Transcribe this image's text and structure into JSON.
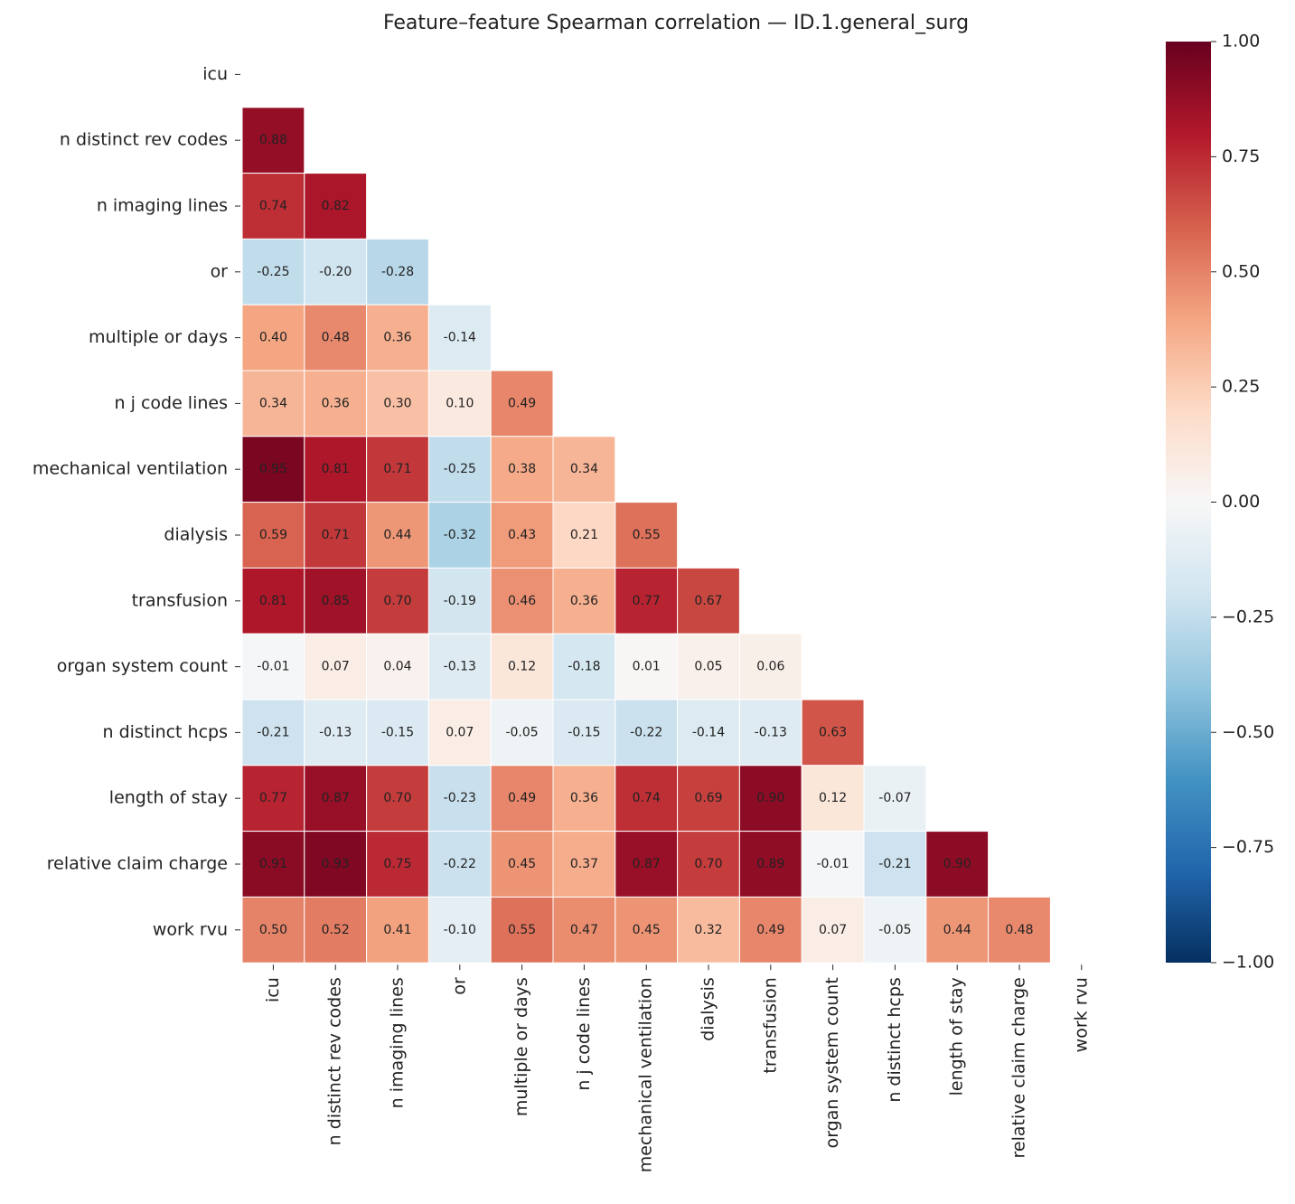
{
  "chart_data": {
    "type": "heatmap",
    "title": "Feature–feature Spearman correlation — ID.1.general_surg",
    "categories": [
      "icu",
      "n distinct rev codes",
      "n imaging lines",
      "or",
      "multiple or days",
      "n j code lines",
      "mechanical ventilation",
      "dialysis",
      "transfusion",
      "organ system count",
      "n distinct hcps",
      "length of stay",
      "relative claim charge",
      "work rvu"
    ],
    "values": [
      [
        null,
        null,
        null,
        null,
        null,
        null,
        null,
        null,
        null,
        null,
        null,
        null,
        null,
        null
      ],
      [
        0.88,
        null,
        null,
        null,
        null,
        null,
        null,
        null,
        null,
        null,
        null,
        null,
        null,
        null
      ],
      [
        0.74,
        0.82,
        null,
        null,
        null,
        null,
        null,
        null,
        null,
        null,
        null,
        null,
        null,
        null
      ],
      [
        -0.25,
        -0.2,
        -0.28,
        null,
        null,
        null,
        null,
        null,
        null,
        null,
        null,
        null,
        null,
        null
      ],
      [
        0.4,
        0.48,
        0.36,
        -0.14,
        null,
        null,
        null,
        null,
        null,
        null,
        null,
        null,
        null,
        null
      ],
      [
        0.34,
        0.36,
        0.3,
        0.1,
        0.49,
        null,
        null,
        null,
        null,
        null,
        null,
        null,
        null,
        null
      ],
      [
        0.95,
        0.81,
        0.71,
        -0.25,
        0.38,
        0.34,
        null,
        null,
        null,
        null,
        null,
        null,
        null,
        null
      ],
      [
        0.59,
        0.71,
        0.44,
        -0.32,
        0.43,
        0.21,
        0.55,
        null,
        null,
        null,
        null,
        null,
        null,
        null
      ],
      [
        0.81,
        0.85,
        0.7,
        -0.19,
        0.46,
        0.36,
        0.77,
        0.67,
        null,
        null,
        null,
        null,
        null,
        null
      ],
      [
        -0.01,
        0.07,
        0.04,
        -0.13,
        0.12,
        -0.18,
        0.01,
        0.05,
        0.06,
        null,
        null,
        null,
        null,
        null
      ],
      [
        -0.21,
        -0.13,
        -0.15,
        0.07,
        -0.05,
        -0.15,
        -0.22,
        -0.14,
        -0.13,
        0.63,
        null,
        null,
        null,
        null
      ],
      [
        0.77,
        0.87,
        0.7,
        -0.23,
        0.49,
        0.36,
        0.74,
        0.69,
        0.9,
        0.12,
        -0.07,
        null,
        null,
        null
      ],
      [
        0.91,
        0.93,
        0.75,
        -0.22,
        0.45,
        0.37,
        0.87,
        0.7,
        0.89,
        -0.01,
        -0.21,
        0.9,
        null,
        null
      ],
      [
        0.5,
        0.52,
        0.41,
        -0.1,
        0.55,
        0.47,
        0.45,
        0.32,
        0.49,
        0.07,
        -0.05,
        0.44,
        0.48,
        null
      ]
    ],
    "value_labels": [
      [
        null,
        null,
        null,
        null,
        null,
        null,
        null,
        null,
        null,
        null,
        null,
        null,
        null,
        null
      ],
      [
        "0.88",
        null,
        null,
        null,
        null,
        null,
        null,
        null,
        null,
        null,
        null,
        null,
        null,
        null
      ],
      [
        "0.74",
        "0.82",
        null,
        null,
        null,
        null,
        null,
        null,
        null,
        null,
        null,
        null,
        null,
        null
      ],
      [
        "-0.25",
        "-0.20",
        "-0.28",
        null,
        null,
        null,
        null,
        null,
        null,
        null,
        null,
        null,
        null,
        null
      ],
      [
        "0.40",
        "0.48",
        "0.36",
        "-0.14",
        null,
        null,
        null,
        null,
        null,
        null,
        null,
        null,
        null,
        null
      ],
      [
        "0.34",
        "0.36",
        "0.30",
        "0.10",
        "0.49",
        null,
        null,
        null,
        null,
        null,
        null,
        null,
        null,
        null
      ],
      [
        "0.95",
        "0.81",
        "0.71",
        "-0.25",
        "0.38",
        "0.34",
        null,
        null,
        null,
        null,
        null,
        null,
        null,
        null
      ],
      [
        "0.59",
        "0.71",
        "0.44",
        "-0.32",
        "0.43",
        "0.21",
        "0.55",
        null,
        null,
        null,
        null,
        null,
        null,
        null
      ],
      [
        "0.81",
        "0.85",
        "0.70",
        "-0.19",
        "0.46",
        "0.36",
        "0.77",
        "0.67",
        null,
        null,
        null,
        null,
        null,
        null
      ],
      [
        "-0.01",
        "0.07",
        "0.04",
        "-0.13",
        "0.12",
        "-0.18",
        "0.01",
        "0.05",
        "0.06",
        null,
        null,
        null,
        null,
        null
      ],
      [
        "-0.21",
        "-0.13",
        "-0.15",
        "0.07",
        "-0.05",
        "-0.15",
        "-0.22",
        "-0.14",
        "-0.13",
        "0.63",
        null,
        null,
        null,
        null
      ],
      [
        "0.77",
        "0.87",
        "0.70",
        "-0.23",
        "0.49",
        "0.36",
        "0.74",
        "0.69",
        "0.90",
        "0.12",
        "-0.07",
        null,
        null,
        null
      ],
      [
        "0.91",
        "0.93",
        "0.75",
        "-0.22",
        "0.45",
        "0.37",
        "0.87",
        "0.70",
        "0.89",
        "-0.01",
        "-0.21",
        "0.90",
        null,
        null
      ],
      [
        "0.50",
        "0.52",
        "0.41",
        "-0.10",
        "0.55",
        "0.47",
        "0.45",
        "0.32",
        "0.49",
        "0.07",
        "-0.05",
        "0.44",
        "0.48",
        null
      ]
    ],
    "colormap": "RdBu_r",
    "clim": [
      -1,
      1
    ],
    "cticks": [
      {
        "value": -1,
        "label": "−1.00"
      },
      {
        "value": -0.75,
        "label": "−0.75"
      },
      {
        "value": -0.5,
        "label": "−0.50"
      },
      {
        "value": -0.25,
        "label": "−0.25"
      },
      {
        "value": 0,
        "label": "0.00"
      },
      {
        "value": 0.25,
        "label": "0.25"
      },
      {
        "value": 0.5,
        "label": "0.50"
      },
      {
        "value": 0.75,
        "label": "0.75"
      },
      {
        "value": 1,
        "label": "1.00"
      }
    ]
  }
}
